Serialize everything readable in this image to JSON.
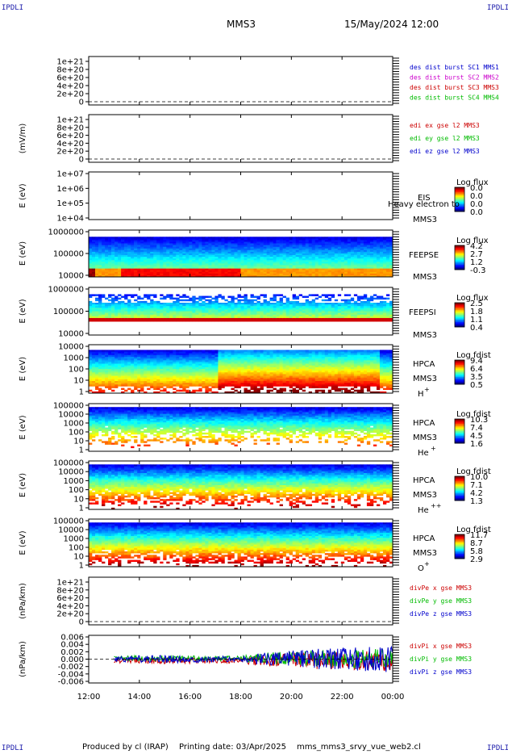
{
  "header": {
    "corner_label": "IPDLI",
    "spacecraft": "MMS3",
    "datetime": "15/May/2024 12:00"
  },
  "footer": {
    "produced_by": "Produced by cl (IRAP)",
    "printing_date": "Printing date: 03/Apr/2025",
    "file": "mms_mms3_srvy_vue_web2.cl"
  },
  "colors": {
    "legend_blue": "#0000cc",
    "legend_magenta": "#cc00cc",
    "legend_red": "#cc0000",
    "legend_green": "#00bb00"
  },
  "chart_data": [
    {
      "type": "line",
      "panel": 1,
      "yticks": [
        "1e+21",
        "8e+20",
        "6e+20",
        "4e+20",
        "2e+20",
        "0"
      ],
      "ylim": [
        0,
        1e+21
      ],
      "legend": [
        {
          "name": "des dist burst SC1 MMS1",
          "color": "#0000cc"
        },
        {
          "name": "des dist burst SC2 MMS2",
          "color": "#cc00cc"
        },
        {
          "name": "des dist burst SC3 MMS3",
          "color": "#cc0000"
        },
        {
          "name": "des dist burst SC4 MMS4",
          "color": "#00bb00"
        }
      ],
      "series": []
    },
    {
      "type": "line",
      "panel": 2,
      "ylabel": "(mV/m)",
      "yticks": [
        "1e+21",
        "8e+20",
        "6e+20",
        "4e+20",
        "2e+20",
        "0"
      ],
      "ylim": [
        0,
        1e+21
      ],
      "legend": [
        {
          "name": "edi ex gse l2 MMS3",
          "color": "#cc0000"
        },
        {
          "name": "edi ey gse l2 MMS3",
          "color": "#00bb00"
        },
        {
          "name": "edi ez gse l2 MMS3",
          "color": "#0000cc"
        }
      ],
      "series": []
    },
    {
      "type": "heatmap",
      "panel": 3,
      "ylabel": "E (eV)",
      "yticks": [
        "1e+07",
        "1e+06",
        "1e+05",
        "1e+04"
      ],
      "instrument": "EIS",
      "spacecraft": "MMS3",
      "note": "Heavy electron to",
      "colorbar_title": "Log flux",
      "colorbar_ticks": [
        "0.0",
        "0.0",
        "0.0",
        "0.0"
      ]
    },
    {
      "type": "heatmap",
      "panel": 4,
      "ylabel": "E (eV)",
      "yticks": [
        "1000000",
        "100000",
        "10000"
      ],
      "instrument": "FEEPSE",
      "spacecraft": "MMS3",
      "colorbar_title": "Log flux",
      "colorbar_ticks": [
        "4.2",
        "2.7",
        "1.2",
        "-0.3"
      ]
    },
    {
      "type": "heatmap",
      "panel": 5,
      "ylabel": "E (eV)",
      "yticks": [
        "1000000",
        "100000",
        "10000"
      ],
      "instrument": "FEEPSI",
      "spacecraft": "MMS3",
      "colorbar_title": "Log flux",
      "colorbar_ticks": [
        "2.5",
        "1.8",
        "1.1",
        "0.4"
      ]
    },
    {
      "type": "heatmap",
      "panel": 6,
      "ylabel": "E (eV)",
      "yticks": [
        "10000",
        "1000",
        "100",
        "10",
        "1"
      ],
      "instrument": "HPCA",
      "spacecraft": "MMS3",
      "species": "H",
      "species_sup": "+",
      "colorbar_title": "Log fdist",
      "colorbar_ticks": [
        "9.4",
        "6.4",
        "3.5",
        "0.5"
      ]
    },
    {
      "type": "heatmap",
      "panel": 7,
      "ylabel": "E (eV)",
      "yticks": [
        "100000",
        "10000",
        "1000",
        "100",
        "10",
        "1"
      ],
      "instrument": "HPCA",
      "spacecraft": "MMS3",
      "species": "He",
      "species_sup": "+",
      "colorbar_title": "Log fdist",
      "colorbar_ticks": [
        "10.3",
        "7.4",
        "4.5",
        "1.6"
      ]
    },
    {
      "type": "heatmap",
      "panel": 8,
      "ylabel": "E (eV)",
      "yticks": [
        "100000",
        "10000",
        "1000",
        "100",
        "10",
        "1"
      ],
      "instrument": "HPCA",
      "spacecraft": "MMS3",
      "species": "He",
      "species_sup": "++",
      "colorbar_title": "Log fdist",
      "colorbar_ticks": [
        "10.0",
        "7.1",
        "4.2",
        "1.3"
      ]
    },
    {
      "type": "heatmap",
      "panel": 9,
      "ylabel": "E (eV)",
      "yticks": [
        "100000",
        "10000",
        "1000",
        "100",
        "10",
        "1"
      ],
      "instrument": "HPCA",
      "spacecraft": "MMS3",
      "species": "O",
      "species_sup": "+",
      "colorbar_title": "Log fdist",
      "colorbar_ticks": [
        "11.7",
        "8.7",
        "5.8",
        "2.9"
      ]
    },
    {
      "type": "line",
      "panel": 10,
      "ylabel": "(nPa/km)",
      "yticks": [
        "1e+21",
        "8e+20",
        "6e+20",
        "4e+20",
        "2e+20",
        "0"
      ],
      "ylim": [
        0,
        1e+21
      ],
      "legend": [
        {
          "name": "divPe x gse MMS3",
          "color": "#cc0000"
        },
        {
          "name": "divPe y gse MMS3",
          "color": "#00bb00"
        },
        {
          "name": "divPe z gse MMS3",
          "color": "#0000cc"
        }
      ],
      "series": []
    },
    {
      "type": "line",
      "panel": 11,
      "ylabel": "(nPa/km)",
      "yticks": [
        "0.006",
        "0.004",
        "0.002",
        "0.000",
        "-0.002",
        "-0.004",
        "-0.006"
      ],
      "ylim": [
        -0.006,
        0.006
      ],
      "legend": [
        {
          "name": "divPi x gse MMS3",
          "color": "#cc0000"
        },
        {
          "name": "divPi y gse MMS3",
          "color": "#00bb00"
        },
        {
          "name": "divPi z gse MMS3",
          "color": "#0000cc"
        }
      ],
      "x_range_hours": [
        13.0,
        24.0
      ],
      "envelope_hours": [
        13,
        14,
        15,
        16,
        17,
        18,
        18.5,
        19,
        20,
        21,
        22,
        23,
        24
      ],
      "envelope_amp": [
        0.0006,
        0.0008,
        0.0009,
        0.0008,
        0.0007,
        0.0007,
        0.0012,
        0.0016,
        0.002,
        0.0024,
        0.0025,
        0.0028,
        0.003
      ]
    }
  ],
  "xaxis": {
    "range_hours": [
      12,
      24
    ],
    "ticks": [
      {
        "hour": 12,
        "label": "12:00"
      },
      {
        "hour": 14,
        "label": "14:00"
      },
      {
        "hour": 16,
        "label": "16:00"
      },
      {
        "hour": 18,
        "label": "18:00"
      },
      {
        "hour": 20,
        "label": "20:00"
      },
      {
        "hour": 22,
        "label": "22:00"
      },
      {
        "hour": 24,
        "label": "00:00"
      }
    ]
  }
}
